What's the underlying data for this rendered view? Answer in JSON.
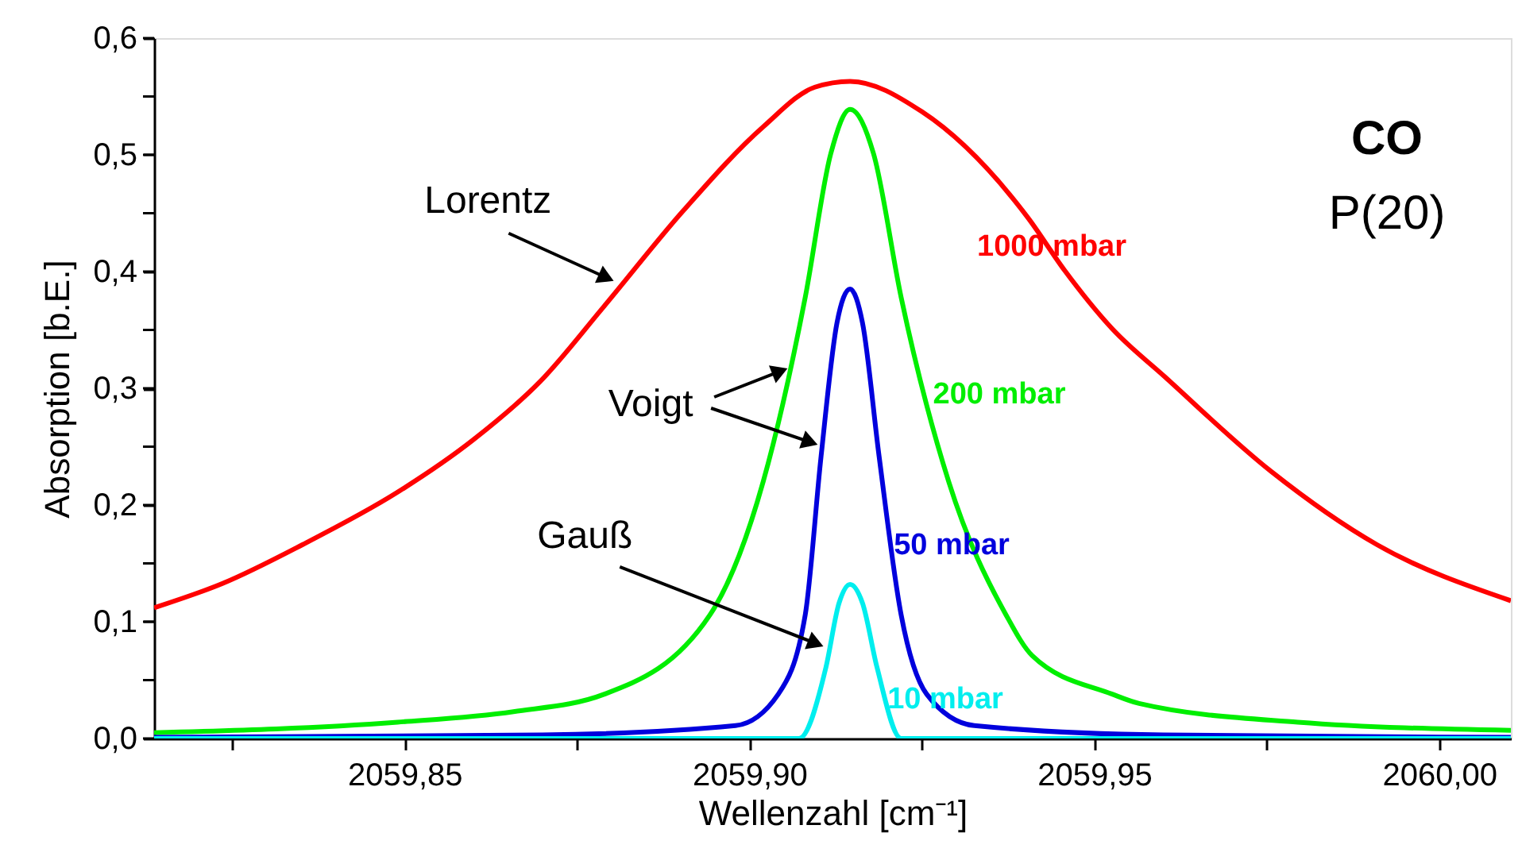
{
  "chart_data": {
    "type": "line",
    "xlabel": "Wellenzahl [cm⁻¹]",
    "ylabel": "Absorption [b.E.]",
    "xlim": [
      2059.8137,
      2060.0104
    ],
    "ylim": [
      0,
      0.6
    ],
    "xticks": [
      {
        "value": 2059.825,
        "label": null
      },
      {
        "value": 2059.85,
        "label": "2059,85"
      },
      {
        "value": 2059.875,
        "label": null
      },
      {
        "value": 2059.9,
        "label": "2059,90"
      },
      {
        "value": 2059.925,
        "label": null
      },
      {
        "value": 2059.95,
        "label": "2059,95"
      },
      {
        "value": 2059.975,
        "label": null
      },
      {
        "value": 2060.0,
        "label": "2060,00"
      }
    ],
    "yticks": [
      {
        "value": 0,
        "label": "0,0"
      },
      {
        "value": 0.05,
        "label": null
      },
      {
        "value": 0.1,
        "label": "0,1"
      },
      {
        "value": 0.15,
        "label": null
      },
      {
        "value": 0.2,
        "label": "0,2"
      },
      {
        "value": 0.25,
        "label": null
      },
      {
        "value": 0.3,
        "label": "0,3"
      },
      {
        "value": 0.35,
        "label": null
      },
      {
        "value": 0.4,
        "label": "0,4"
      },
      {
        "value": 0.45,
        "label": null
      },
      {
        "value": 0.5,
        "label": "0,5"
      },
      {
        "value": 0.55,
        "label": null
      },
      {
        "value": 0.6,
        "label": "0,6"
      }
    ],
    "grid": false,
    "legend": false,
    "marker": "none",
    "line_style": "solid",
    "series": [
      {
        "name": "1000 mbar",
        "color": "#ff0000",
        "x": [
          2059.8137,
          2059.8237,
          2059.8352,
          2059.849,
          2059.86,
          2059.8697,
          2059.8789,
          2059.8904,
          2059.902,
          2059.9095,
          2059.9146,
          2059.925,
          2059.9404,
          2059.9457,
          2059.9526,
          2059.9602,
          2059.9756,
          2059.991,
          2060.0104
        ],
        "values": [
          0.112,
          0.133,
          0.166,
          0.211,
          0.256,
          0.306,
          0.37,
          0.452,
          0.524,
          0.558,
          0.563,
          0.537,
          0.446,
          0.401,
          0.351,
          0.31,
          0.229,
          0.166,
          0.118
        ]
      },
      {
        "name": "200 mbar",
        "color": "#00ee00",
        "x": [
          2059.8137,
          2059.849,
          2059.8658,
          2059.879,
          2059.8943,
          2059.902,
          2059.9081,
          2059.9118,
          2059.9146,
          2059.918,
          2059.922,
          2059.9289,
          2059.9372,
          2059.941,
          2059.9526,
          2059.9565,
          2059.9795,
          2060.0104
        ],
        "values": [
          0.005,
          0.014,
          0.023,
          0.038,
          0.106,
          0.22,
          0.378,
          0.501,
          0.539,
          0.501,
          0.378,
          0.22,
          0.106,
          0.071,
          0.038,
          0.03,
          0.014,
          0.007
        ]
      },
      {
        "name": "50 mbar",
        "color": "#0000dd",
        "x": [
          2059.8137,
          2059.87,
          2059.898,
          2059.9042,
          2059.9081,
          2059.9104,
          2059.9127,
          2059.9146,
          2059.9164,
          2059.9188,
          2059.922,
          2059.9257,
          2059.9326,
          2059.96,
          2060.0104
        ],
        "values": [
          0.001,
          0.003,
          0.011,
          0.038,
          0.106,
          0.242,
          0.356,
          0.385,
          0.356,
          0.242,
          0.106,
          0.038,
          0.011,
          0.003,
          0.001
        ]
      },
      {
        "name": "10 mbar",
        "color": "#00eeee",
        "x": [
          2059.8137,
          2059.9072,
          2059.9111,
          2059.913,
          2059.9146,
          2059.9164,
          2059.9185,
          2059.922,
          2060.0104
        ],
        "values": [
          0,
          0,
          0.061,
          0.116,
          0.132,
          0.116,
          0.061,
          0,
          0
        ]
      }
    ],
    "annotations": [
      {
        "text": "Lorentz",
        "x": 2059.8803,
        "y": 0.392
      },
      {
        "text": "Voigt",
        "x": 2059.9055,
        "y": 0.317
      },
      {
        "text": "Gauß",
        "x": 2059.9107,
        "y": 0.079
      },
      "CO",
      "P(20)"
    ]
  }
}
